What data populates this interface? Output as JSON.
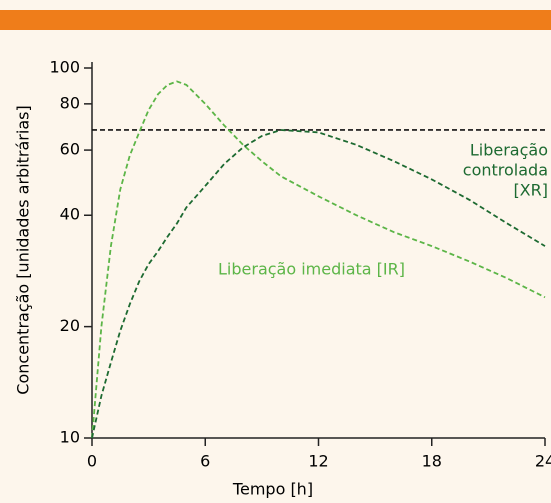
{
  "chart_data": {
    "type": "line",
    "x": [
      0,
      0.5,
      1,
      1.5,
      2,
      2.5,
      3,
      3.5,
      4,
      4.5,
      5,
      6,
      7,
      8,
      9,
      10,
      12,
      14,
      16,
      18,
      20,
      22,
      24
    ],
    "series": [
      {
        "name": "Liberação imediata [IR]",
        "color": "#5cb547",
        "values": [
          10,
          20,
          33,
          47,
          58,
          67,
          77,
          85,
          90,
          92,
          90,
          80,
          70,
          62,
          56,
          51,
          45,
          40,
          36,
          33,
          30,
          27,
          24
        ]
      },
      {
        "name": "Liberação controlada [XR]",
        "color": "#1d6a31",
        "values": [
          10,
          13,
          16,
          19.5,
          23,
          26.5,
          29.5,
          32,
          35,
          38,
          42,
          48,
          55,
          61,
          65.5,
          68,
          67,
          62,
          56,
          50,
          44,
          38,
          33
        ]
      }
    ],
    "annotations": {
      "xr": [
        "Liberação",
        "controlada",
        "[XR]"
      ],
      "ir": "Liberação imediata [IR]"
    },
    "reference_line": 68,
    "reference_color": "#111111",
    "xlabel": "Tempo [h]",
    "ylabel": "Concentração [unidades arbitrárias]",
    "xlim": [
      0,
      24
    ],
    "xticks": [
      0,
      6,
      12,
      18,
      24
    ],
    "ylim": [
      10,
      100
    ],
    "yticks": [
      10,
      20,
      40,
      60,
      80,
      100
    ],
    "yscale": "log",
    "header_color": "#ef7d1a"
  }
}
